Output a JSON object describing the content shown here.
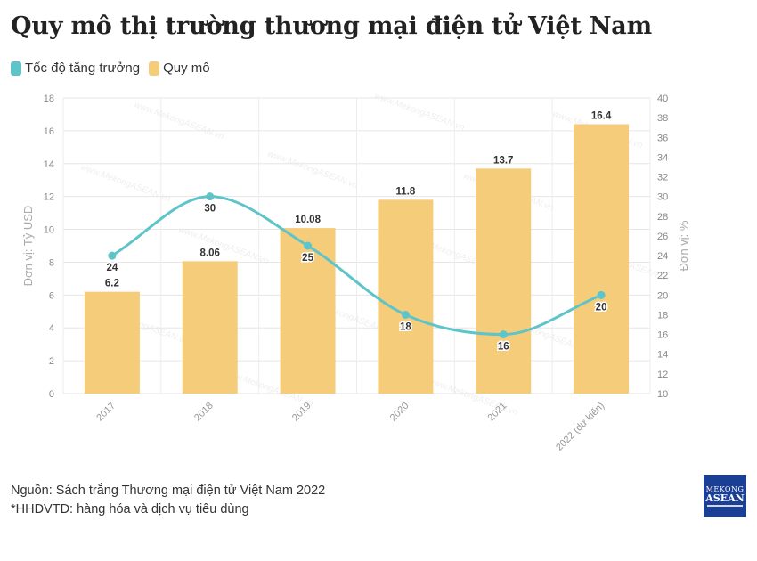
{
  "title": "Quy mô thị trường thương mại điện tử Việt Nam",
  "legend": [
    {
      "label": "Tốc độ tăng trưởng",
      "color": "#5fc4c9"
    },
    {
      "label": "Quy mô",
      "color": "#f5cd7a"
    }
  ],
  "watermark": "www.MekongASEAN.vn",
  "source_line1": "Nguồn: Sách trắng Thương mại điện tử Việt Nam 2022",
  "source_line2": "*HHDVTD: hàng hóa và dịch vụ tiêu dùng",
  "logo": {
    "line1": "MEKONG",
    "line2": "ASEAN"
  },
  "chart_data": {
    "type": "bar+line",
    "categories": [
      "2017",
      "2018",
      "2019",
      "2020",
      "2021",
      "2022 (dự kiến)"
    ],
    "series": [
      {
        "name": "Quy mô",
        "type": "bar",
        "axis": "left",
        "color": "#f5cd7a",
        "values": [
          6.2,
          8.06,
          10.08,
          11.8,
          13.7,
          16.4
        ],
        "labels": [
          "6.2",
          "8.06",
          "10.08",
          "11.8",
          "13.7",
          "16.4"
        ]
      },
      {
        "name": "Tốc độ tăng trưởng",
        "type": "line",
        "axis": "right",
        "color": "#5fc4c9",
        "values": [
          24,
          30,
          25,
          18,
          16,
          20
        ],
        "labels": [
          "24",
          "30",
          "25",
          "18",
          "16",
          "20"
        ]
      }
    ],
    "ylabel_left": "Đơn vị: Tỷ USD",
    "ylabel_right": "Đơn vị: %",
    "ylim_left": [
      0,
      18
    ],
    "yticks_left": [
      0,
      2,
      4,
      6,
      8,
      10,
      12,
      14,
      16,
      18
    ],
    "ylim_right": [
      10,
      40
    ],
    "yticks_right": [
      10,
      12,
      14,
      16,
      18,
      20,
      22,
      24,
      26,
      28,
      30,
      32,
      34,
      36,
      38,
      40
    ],
    "grid": true
  }
}
